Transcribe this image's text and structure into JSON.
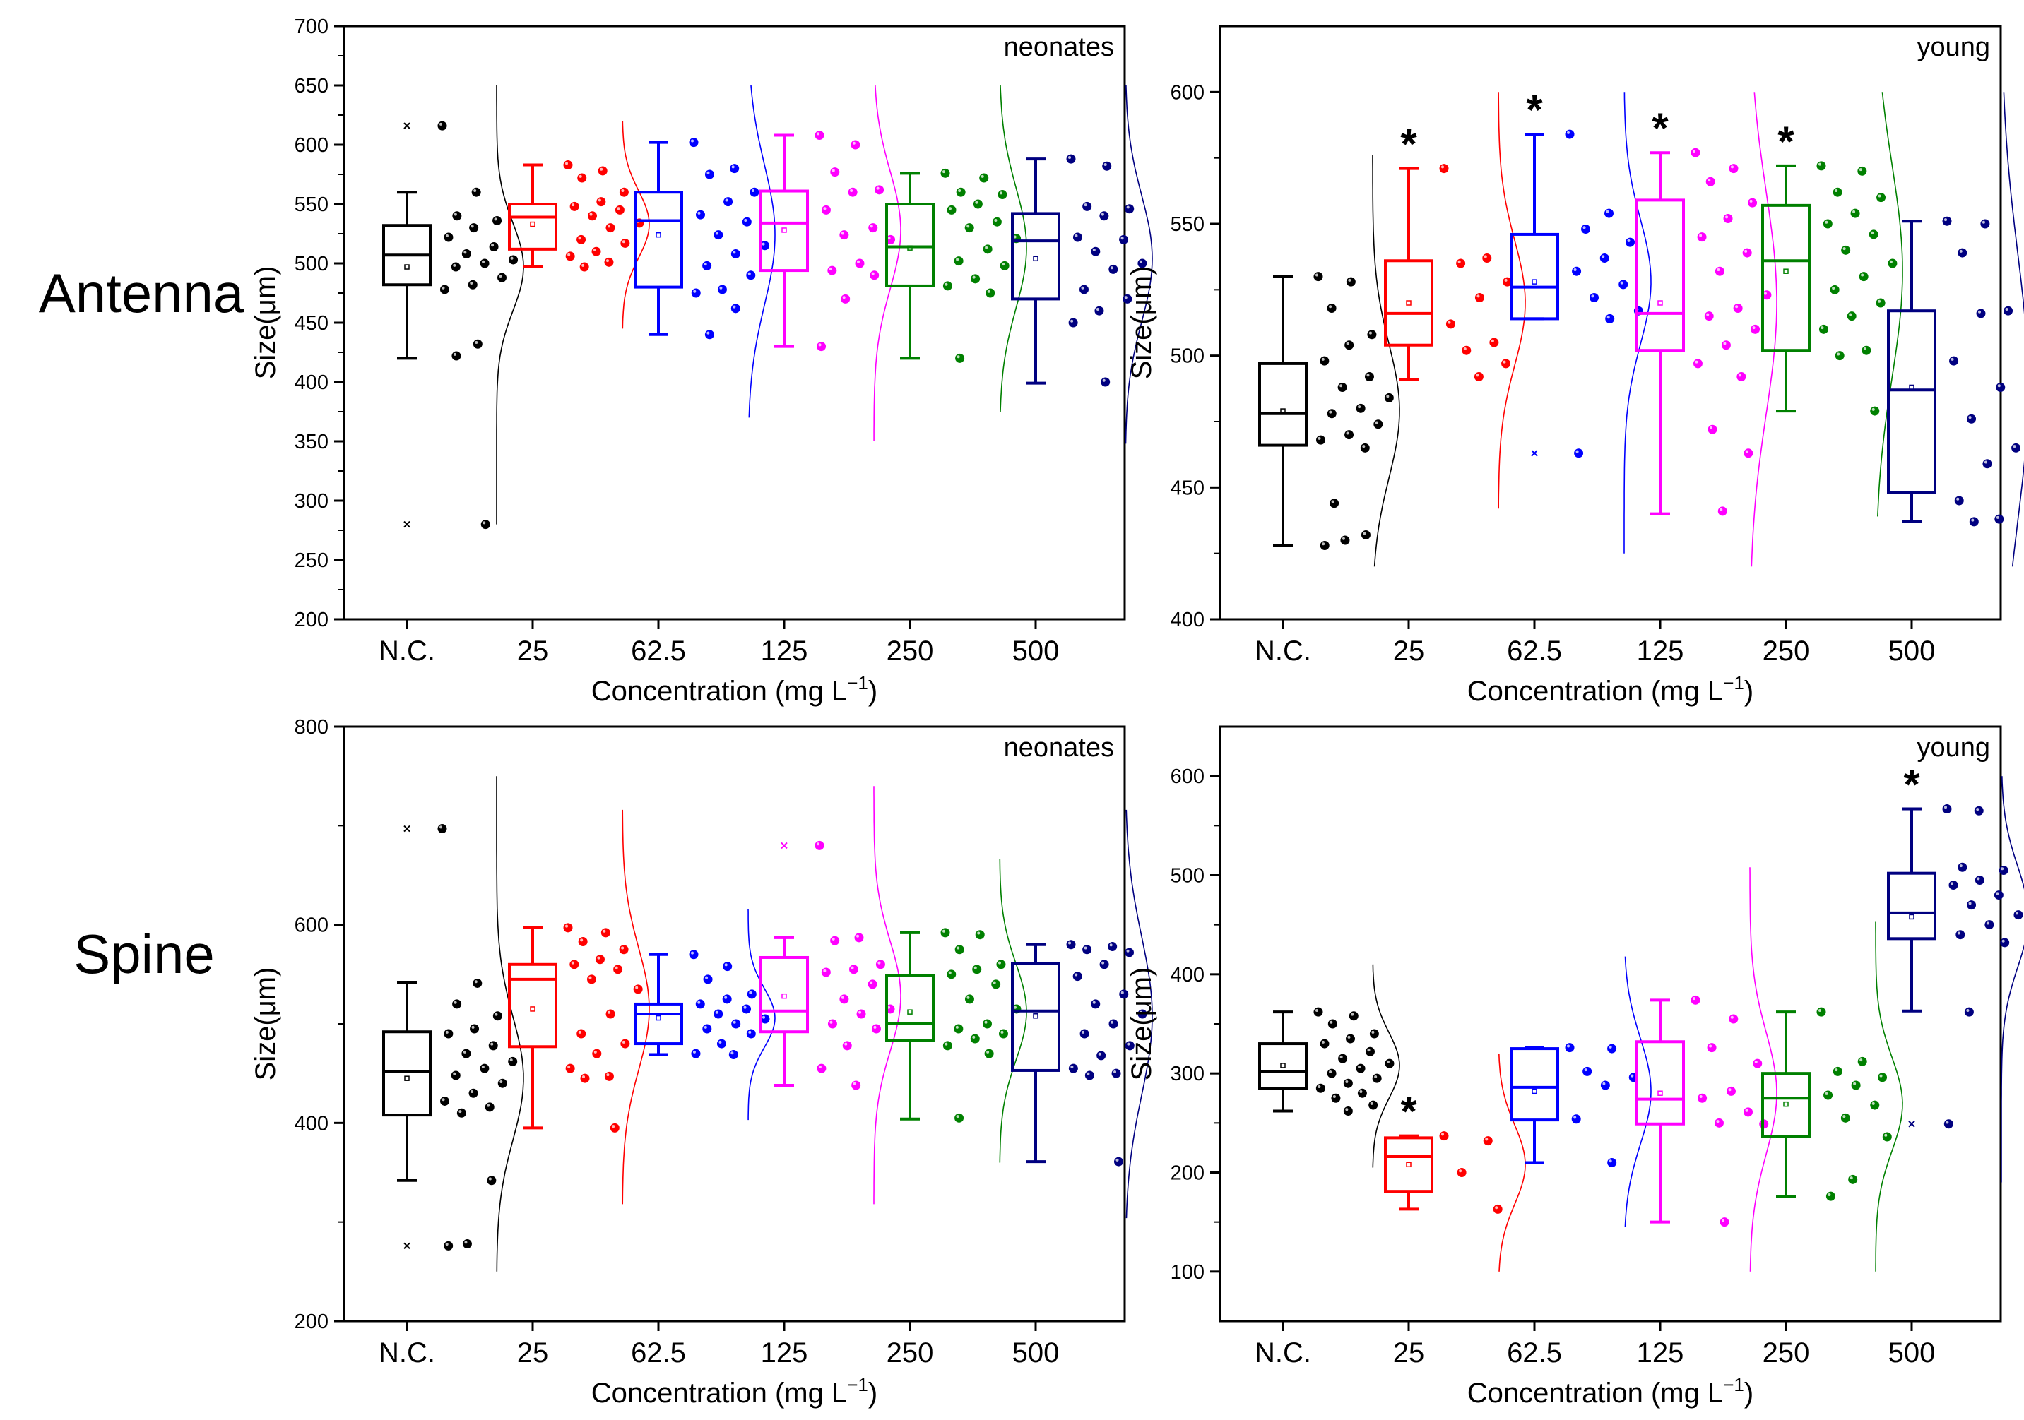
{
  "colors": {
    "N.C.": "#000000",
    "25": "#ff0000",
    "62.5": "#0000ff",
    "125": "#ff00ff",
    "250": "#008000",
    "500": "#000080"
  },
  "row_labels": [
    "Antenna",
    "Spine"
  ],
  "chart_data": [
    {
      "type": "box",
      "panel": "neonates",
      "row": "Antenna",
      "categories": [
        "N.C.",
        "25",
        "62.5",
        "125",
        "250",
        "500"
      ],
      "xlabel": "Concentration (mg L",
      "xlabel_sup": "−1",
      "xlabel_close": ")",
      "ylabel": "Size(μm)",
      "ylim": [
        200,
        700
      ],
      "yticks": [
        200,
        250,
        300,
        350,
        400,
        450,
        500,
        550,
        600,
        650,
        700
      ],
      "boxes": [
        {
          "q1": 482,
          "median": 507,
          "q3": 532,
          "mean": 497,
          "whisker_low": 420,
          "whisker_high": 560,
          "outliers": [
            616,
            280
          ],
          "points": [
            616,
            560,
            540,
            536,
            530,
            522,
            514,
            508,
            503,
            500,
            497,
            488,
            482,
            478,
            432,
            422,
            280
          ],
          "curve": [
            280,
            650
          ]
        },
        {
          "q1": 512,
          "median": 539,
          "q3": 550,
          "mean": 533,
          "whisker_low": 497,
          "whisker_high": 583,
          "outliers": [],
          "points": [
            583,
            578,
            572,
            560,
            552,
            548,
            545,
            540,
            534,
            530,
            520,
            517,
            510,
            506,
            501,
            497
          ],
          "curve": [
            445,
            620
          ]
        },
        {
          "q1": 480,
          "median": 536,
          "q3": 560,
          "mean": 524,
          "whisker_low": 440,
          "whisker_high": 602,
          "outliers": [],
          "points": [
            602,
            580,
            575,
            560,
            552,
            541,
            535,
            524,
            515,
            508,
            498,
            490,
            478,
            475,
            462,
            440
          ],
          "curve": [
            370,
            650
          ]
        },
        {
          "q1": 494,
          "median": 534,
          "q3": 561,
          "mean": 528,
          "whisker_low": 430,
          "whisker_high": 608,
          "outliers": [],
          "points": [
            608,
            600,
            577,
            562,
            560,
            545,
            530,
            524,
            520,
            500,
            494,
            490,
            470,
            430
          ],
          "curve": [
            350,
            650
          ]
        },
        {
          "q1": 481,
          "median": 514,
          "q3": 550,
          "mean": 513,
          "whisker_low": 420,
          "whisker_high": 576,
          "outliers": [],
          "points": [
            576,
            572,
            560,
            558,
            550,
            545,
            535,
            530,
            521,
            512,
            502,
            498,
            487,
            481,
            475,
            420
          ],
          "curve": [
            375,
            650
          ]
        },
        {
          "q1": 470,
          "median": 519,
          "q3": 542,
          "mean": 504,
          "whisker_low": 399,
          "whisker_high": 588,
          "outliers": [],
          "points": [
            588,
            582,
            548,
            546,
            540,
            522,
            520,
            510,
            500,
            495,
            478,
            470,
            460,
            450,
            400
          ],
          "curve": [
            348,
            650
          ]
        }
      ]
    },
    {
      "type": "box",
      "panel": "young",
      "row": "Antenna",
      "categories": [
        "N.C.",
        "25",
        "62.5",
        "125",
        "250",
        "500"
      ],
      "xlabel": "Concentration (mg L",
      "xlabel_sup": "−1",
      "xlabel_close": ")",
      "ylabel": "Size(μm)",
      "ylim": [
        400,
        625
      ],
      "yticks": [
        400,
        450,
        500,
        550,
        600
      ],
      "boxes": [
        {
          "q1": 466,
          "median": 478,
          "q3": 497,
          "mean": 479,
          "whisker_low": 428,
          "whisker_high": 530,
          "outliers": [],
          "points": [
            530,
            528,
            518,
            508,
            504,
            498,
            492,
            488,
            484,
            480,
            478,
            474,
            470,
            468,
            465,
            444,
            432,
            430,
            428
          ],
          "curve": [
            420,
            576
          ]
        },
        {
          "q1": 504,
          "median": 516,
          "q3": 536,
          "mean": 520,
          "whisker_low": 491,
          "whisker_high": 571,
          "outliers": [],
          "points": [
            571,
            537,
            535,
            528,
            522,
            512,
            505,
            502,
            497,
            492
          ],
          "curve": [
            442,
            600
          ],
          "significant": true
        },
        {
          "q1": 514,
          "median": 526,
          "q3": 546,
          "mean": 528,
          "whisker_low": 514,
          "whisker_high": 584,
          "outliers": [
            463
          ],
          "points": [
            584,
            554,
            548,
            543,
            537,
            532,
            527,
            522,
            517,
            514,
            463
          ],
          "curve": [
            425,
            600
          ],
          "significant": true
        },
        {
          "q1": 502,
          "median": 516,
          "q3": 559,
          "mean": 520,
          "whisker_low": 440,
          "whisker_high": 577,
          "outliers": [],
          "points": [
            577,
            571,
            566,
            558,
            552,
            545,
            539,
            532,
            523,
            518,
            515,
            510,
            504,
            497,
            492,
            472,
            463,
            441
          ],
          "curve": [
            420,
            600
          ],
          "significant": true
        },
        {
          "q1": 502,
          "median": 536,
          "q3": 557,
          "mean": 532,
          "whisker_low": 479,
          "whisker_high": 572,
          "outliers": [],
          "points": [
            572,
            570,
            562,
            560,
            554,
            550,
            546,
            540,
            535,
            530,
            525,
            520,
            515,
            510,
            502,
            500,
            479
          ],
          "curve": [
            439,
            600
          ],
          "significant": true
        },
        {
          "q1": 448,
          "median": 487,
          "q3": 517,
          "mean": 488,
          "whisker_low": 437,
          "whisker_high": 551,
          "outliers": [],
          "points": [
            551,
            550,
            539,
            517,
            516,
            498,
            488,
            476,
            465,
            459,
            445,
            438,
            437
          ],
          "curve": [
            420,
            600
          ]
        }
      ]
    },
    {
      "type": "box",
      "panel": "neonates",
      "row": "Spine",
      "categories": [
        "N.C.",
        "25",
        "62.5",
        "125",
        "250",
        "500"
      ],
      "xlabel": "Concentration (mg L",
      "xlabel_sup": "−1",
      "xlabel_close": ")",
      "ylabel": "Size(μm)",
      "ylim": [
        200,
        800
      ],
      "yticks": [
        200,
        400,
        600,
        800
      ],
      "boxes": [
        {
          "q1": 408,
          "median": 452,
          "q3": 492,
          "mean": 445,
          "whisker_low": 342,
          "whisker_high": 542,
          "outliers": [
            697,
            276
          ],
          "points": [
            697,
            541,
            520,
            508,
            495,
            490,
            478,
            470,
            462,
            455,
            448,
            440,
            430,
            422,
            416,
            410,
            342,
            278,
            276
          ],
          "curve": [
            250,
            750
          ]
        },
        {
          "q1": 477,
          "median": 545,
          "q3": 560,
          "mean": 515,
          "whisker_low": 395,
          "whisker_high": 597,
          "outliers": [],
          "points": [
            597,
            592,
            583,
            575,
            565,
            560,
            555,
            545,
            535,
            510,
            490,
            480,
            470,
            455,
            447,
            445,
            395
          ],
          "curve": [
            318,
            716
          ]
        },
        {
          "q1": 480,
          "median": 510,
          "q3": 520,
          "mean": 506,
          "whisker_low": 469,
          "whisker_high": 570,
          "outliers": [],
          "points": [
            570,
            558,
            545,
            530,
            525,
            520,
            515,
            510,
            505,
            500,
            495,
            490,
            480,
            470,
            469
          ],
          "curve": [
            403,
            616
          ]
        },
        {
          "q1": 492,
          "median": 513,
          "q3": 567,
          "mean": 528,
          "whisker_low": 438,
          "whisker_high": 587,
          "outliers": [
            680
          ],
          "points": [
            680,
            587,
            584,
            560,
            555,
            552,
            540,
            525,
            515,
            510,
            500,
            495,
            478,
            455,
            438
          ],
          "curve": [
            318,
            740
          ]
        },
        {
          "q1": 483,
          "median": 500,
          "q3": 549,
          "mean": 512,
          "whisker_low": 404,
          "whisker_high": 592,
          "outliers": [],
          "points": [
            592,
            590,
            575,
            560,
            555,
            550,
            540,
            525,
            515,
            500,
            495,
            490,
            485,
            478,
            470,
            405
          ],
          "curve": [
            360,
            666
          ]
        },
        {
          "q1": 453,
          "median": 513,
          "q3": 561,
          "mean": 508,
          "whisker_low": 361,
          "whisker_high": 580,
          "outliers": [],
          "points": [
            580,
            578,
            575,
            572,
            560,
            548,
            530,
            520,
            510,
            500,
            490,
            478,
            468,
            455,
            450,
            448,
            361
          ],
          "curve": [
            304,
            716
          ]
        }
      ]
    },
    {
      "type": "box",
      "panel": "young",
      "row": "Spine",
      "categories": [
        "N.C.",
        "25",
        "62.5",
        "125",
        "250",
        "500"
      ],
      "xlabel": "Concentration (mg L",
      "xlabel_sup": "−1",
      "xlabel_close": ")",
      "ylabel": "Size(μm)",
      "ylim": [
        50,
        650
      ],
      "yticks": [
        100,
        200,
        300,
        400,
        500,
        600
      ],
      "boxes": [
        {
          "q1": 285,
          "median": 302,
          "q3": 330,
          "mean": 308,
          "whisker_low": 262,
          "whisker_high": 362,
          "outliers": [],
          "points": [
            362,
            358,
            350,
            340,
            335,
            330,
            322,
            315,
            310,
            305,
            300,
            295,
            290,
            285,
            280,
            275,
            268,
            262
          ],
          "curve": [
            205,
            410
          ]
        },
        {
          "q1": 181,
          "median": 216,
          "q3": 235,
          "mean": 208,
          "whisker_low": 163,
          "whisker_high": 237,
          "outliers": [],
          "points": [
            237,
            232,
            200,
            163
          ],
          "curve": [
            100,
            320
          ],
          "significant": true
        },
        {
          "q1": 253,
          "median": 286,
          "q3": 325,
          "mean": 282,
          "whisker_low": 210,
          "whisker_high": 326,
          "outliers": [],
          "points": [
            326,
            325,
            302,
            296,
            288,
            254,
            210
          ],
          "curve": [
            145,
            418
          ]
        },
        {
          "q1": 249,
          "median": 274,
          "q3": 332,
          "mean": 280,
          "whisker_low": 150,
          "whisker_high": 374,
          "outliers": [],
          "points": [
            374,
            355,
            326,
            310,
            282,
            275,
            261,
            250,
            249,
            150
          ],
          "curve": [
            100,
            508
          ]
        },
        {
          "q1": 236,
          "median": 275,
          "q3": 300,
          "mean": 269,
          "whisker_low": 176,
          "whisker_high": 362,
          "outliers": [],
          "points": [
            362,
            312,
            302,
            296,
            288,
            278,
            268,
            255,
            236,
            193,
            176
          ],
          "curve": [
            100,
            453
          ]
        },
        {
          "q1": 436,
          "median": 462,
          "q3": 502,
          "mean": 458,
          "whisker_low": 363,
          "whisker_high": 567,
          "outliers": [
            249
          ],
          "points": [
            567,
            565,
            508,
            505,
            495,
            490,
            480,
            470,
            460,
            450,
            440,
            432,
            362,
            249
          ],
          "curve": [
            190,
            600
          ],
          "significant": true
        }
      ]
    }
  ]
}
